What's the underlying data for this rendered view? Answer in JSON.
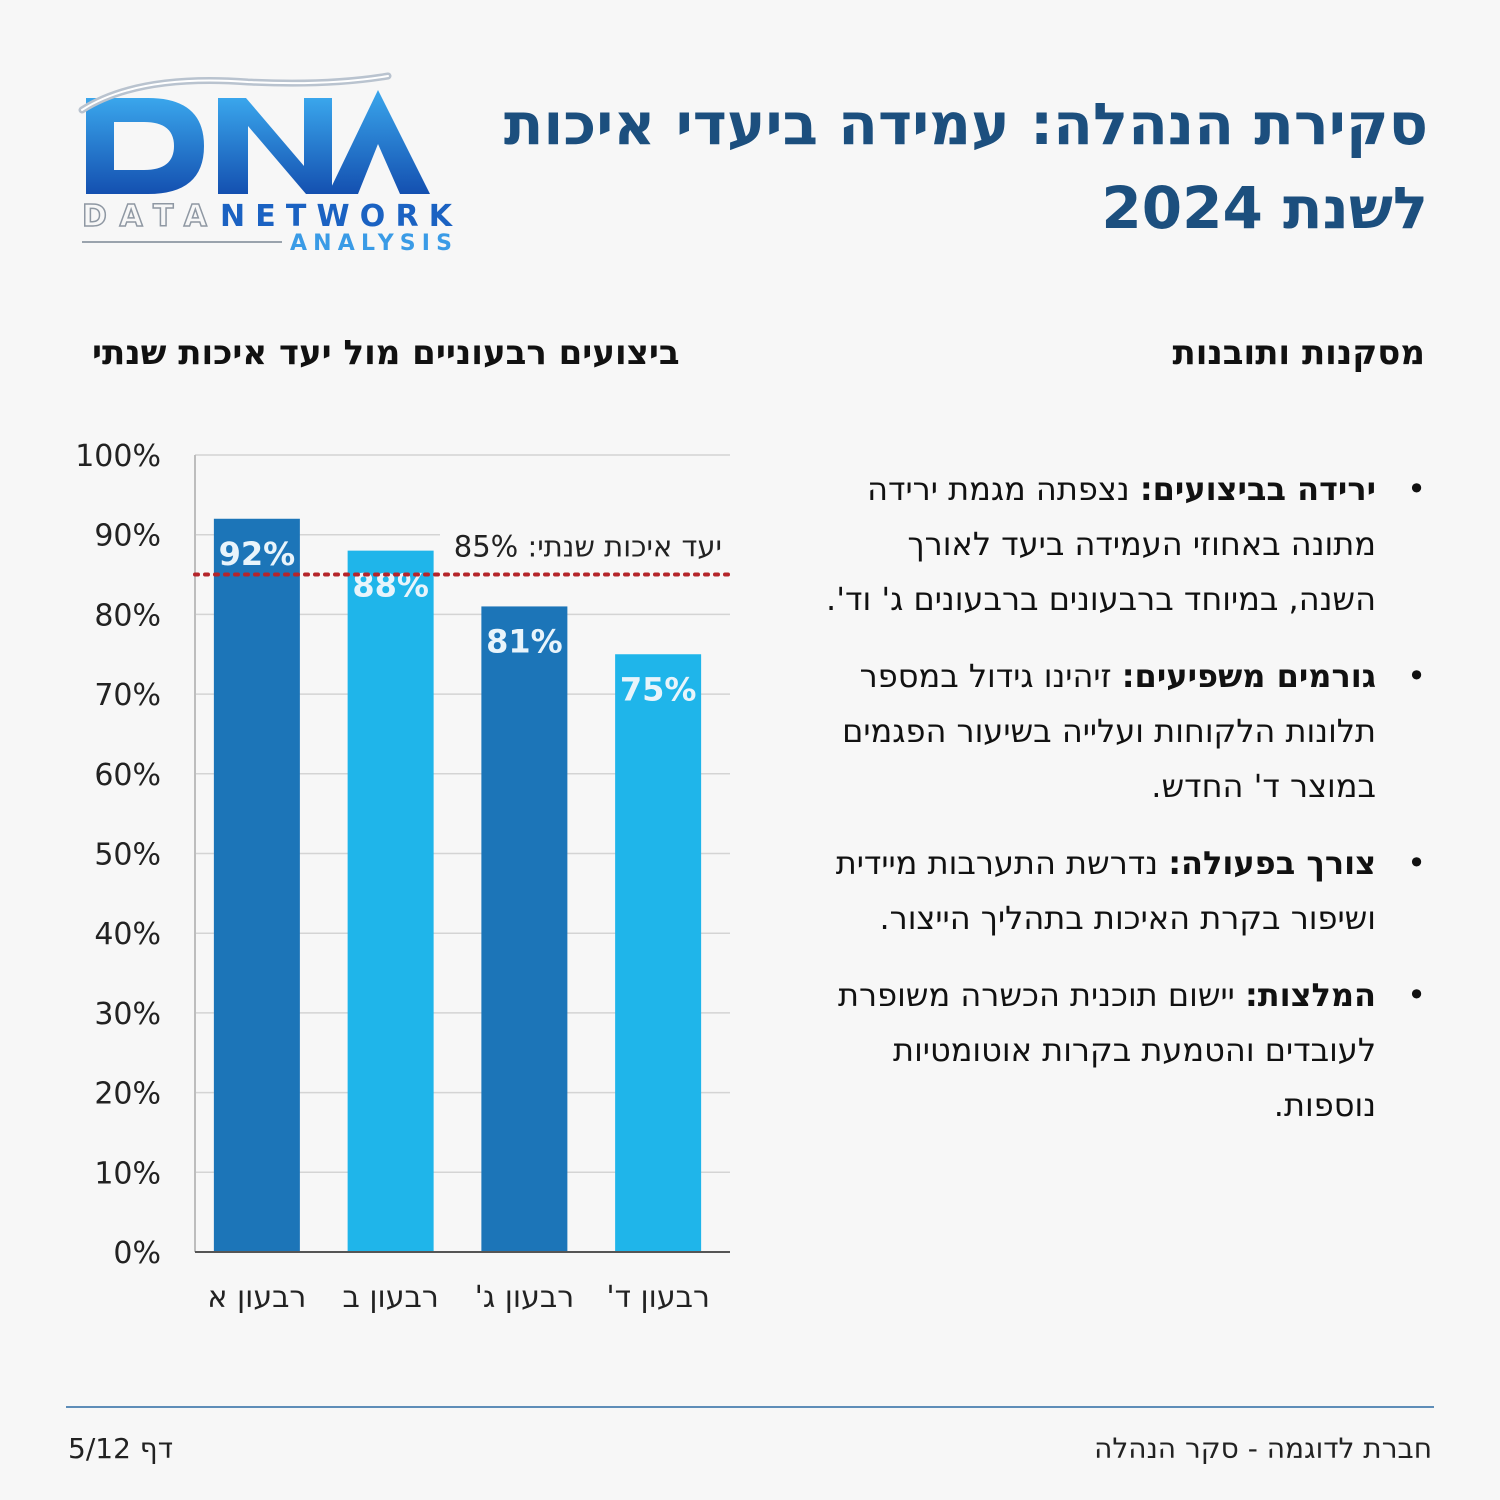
{
  "logo": {
    "letters": "DNA",
    "word1": "DATA",
    "word2": "NETWORK",
    "word3": "ANALYSIS"
  },
  "title": "סקירת הנהלה: עמידה ביעדי איכות לשנת 2024",
  "insights": {
    "heading": "מסקנות ותובנות",
    "items": [
      {
        "lead": "ירידה בביצועים",
        "text": " נצפתה מגמת ירידה מתונה באחוזי העמידה ביעד לאורך השנה, במיוחד ברבעונים ברבעונים ג' וד'."
      },
      {
        "lead": "גורמים משפיעים",
        "text": " זיהינו גידול במספר תלונות הלקוחות ועלייה בשיעור הפגמים במוצר ד' החדש."
      },
      {
        "lead": "צורך בפעולה",
        "text": " נדרשת התערבות מיידית ושיפור בקרת האיכות בתהליך הייצור."
      },
      {
        "lead": "המלצות",
        "text": " יישום תוכנית הכשרה משופרת לעובדים והטמעת בקרות אוטומטיות נוספות."
      }
    ]
  },
  "chart_data": {
    "type": "bar",
    "title": "ביצועים רבעוניים מול יעד איכות שנתי",
    "categories": [
      "רבעון א",
      "רבעון ב",
      "רבעון ג'",
      "רבעון ד'"
    ],
    "values": [
      92,
      88,
      81,
      75
    ],
    "value_labels": [
      "92%",
      "88%",
      "81%",
      "75%"
    ],
    "colors": [
      "#1c75b8",
      "#1fb5ea",
      "#1c75b8",
      "#1fb5ea"
    ],
    "ylim": [
      0,
      100
    ],
    "yticks": [
      0,
      10,
      20,
      30,
      40,
      50,
      60,
      70,
      80,
      90,
      100
    ],
    "ytick_labels": [
      "0%",
      "10%",
      "20%",
      "30%",
      "40%",
      "50%",
      "60%",
      "70%",
      "80%",
      "90%",
      "100%"
    ],
    "target": {
      "value": 85,
      "label": "יעד איכות שנתי: 85%",
      "color": "#b5252b"
    },
    "grid": true
  },
  "footer": {
    "company": "חברת לדוגמה - סקר הנהלה",
    "page": "דף 5/12"
  }
}
